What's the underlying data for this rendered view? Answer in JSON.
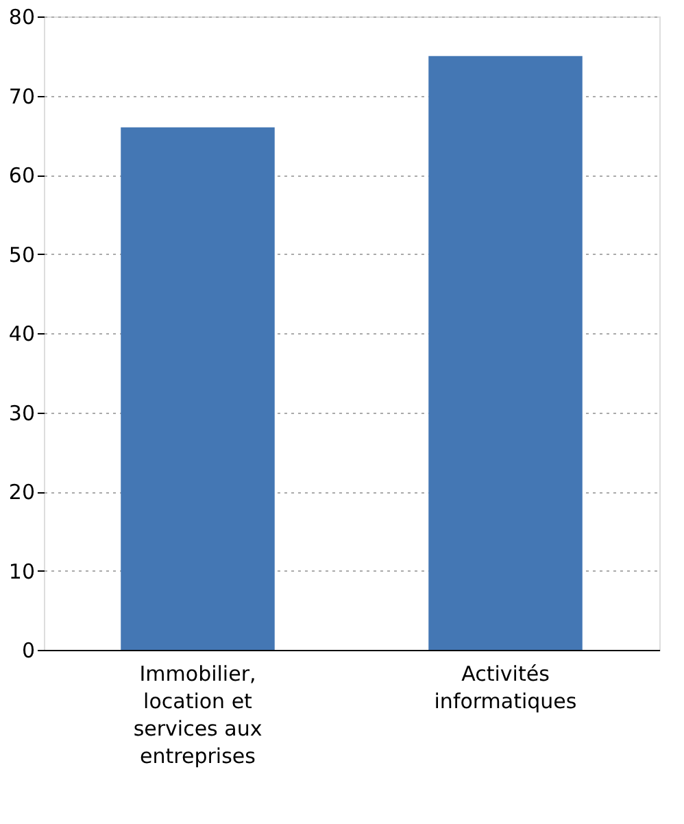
{
  "chart_data": {
    "type": "bar",
    "categories": [
      "Immobilier, location et services aux entreprises",
      "Activités informatiques"
    ],
    "values": [
      66,
      75
    ],
    "color": "#4477b4",
    "ylim": [
      0,
      80
    ],
    "yticks": [
      0,
      10,
      20,
      30,
      40,
      50,
      60,
      70,
      80
    ],
    "grid": "y"
  }
}
